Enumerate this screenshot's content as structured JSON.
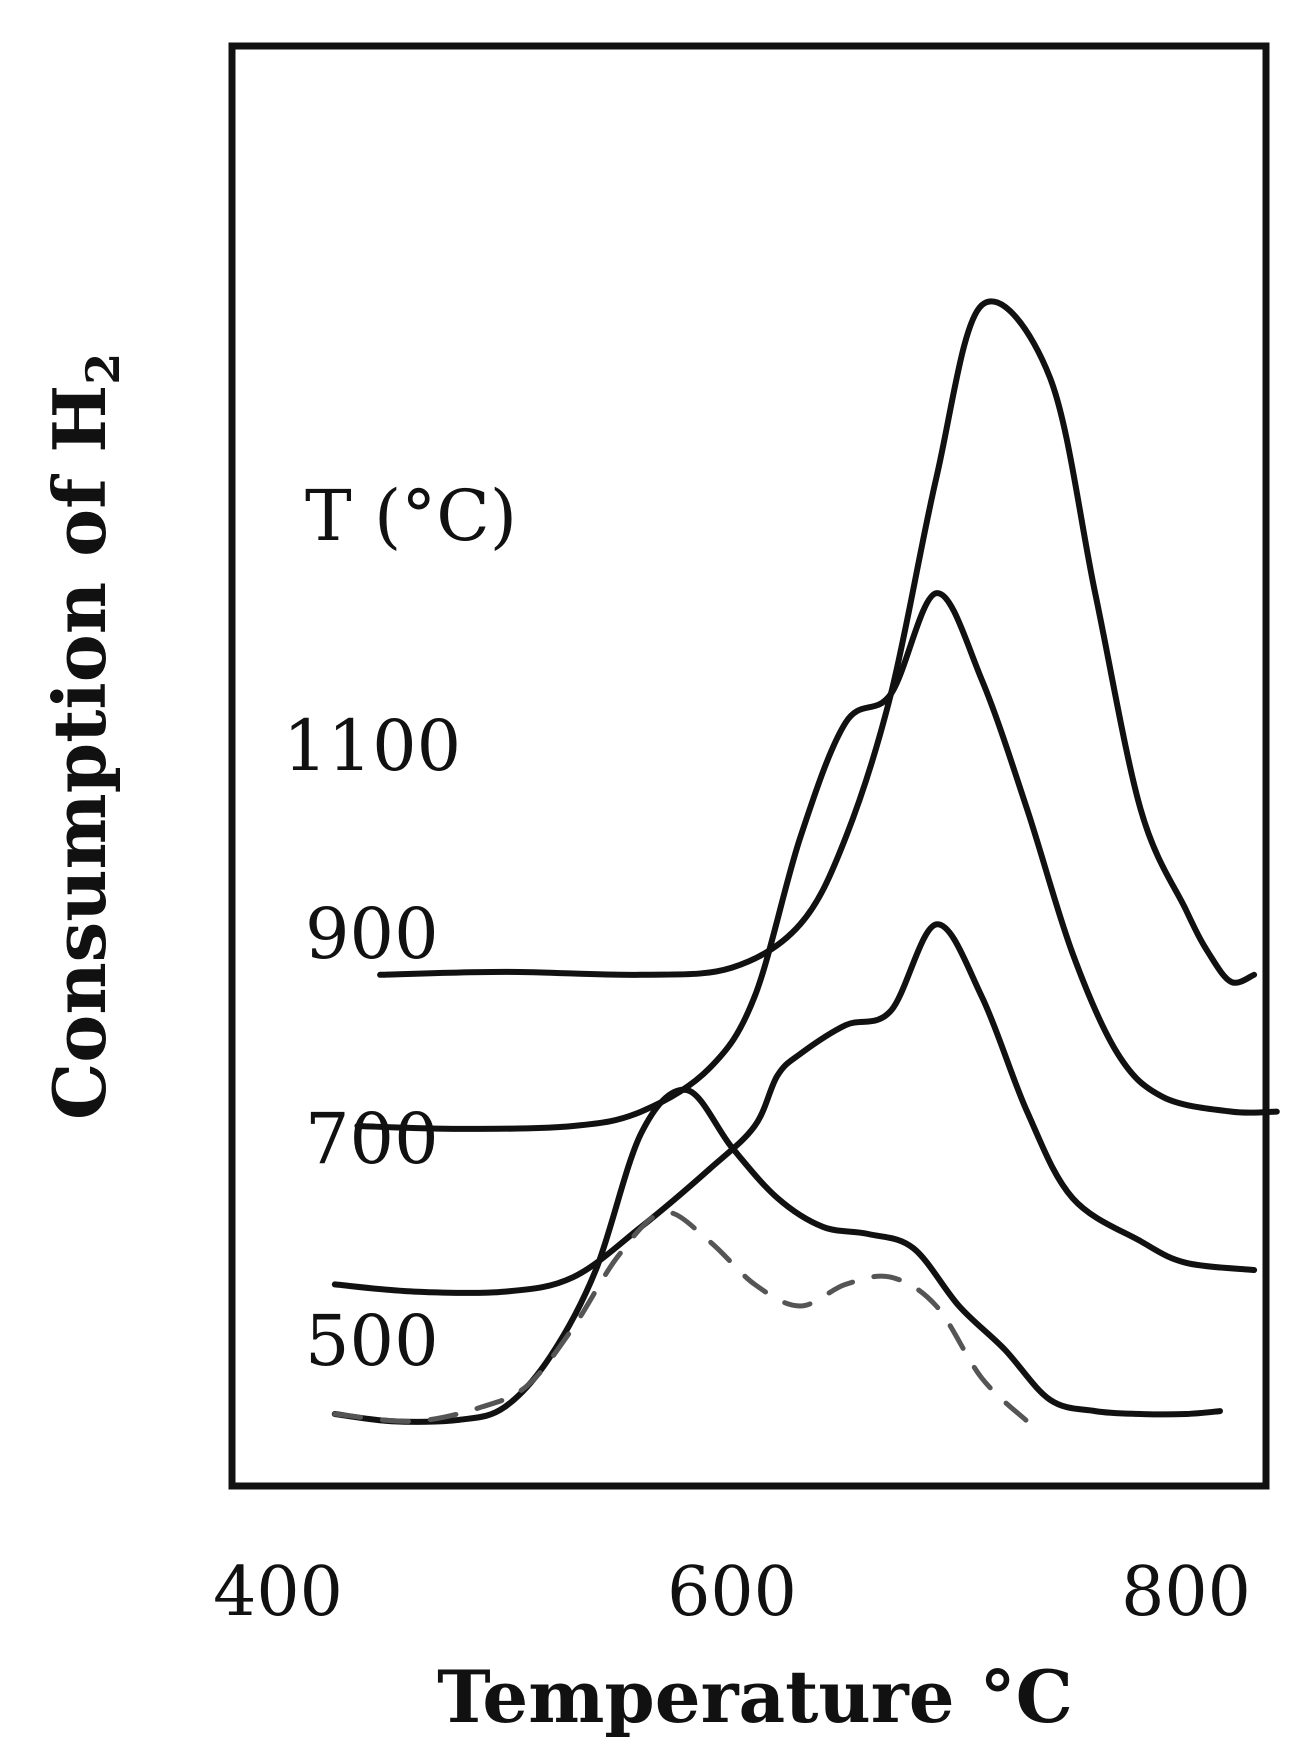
{
  "chart_data": {
    "type": "line",
    "xlabel": "Temperature °C",
    "ylabel": "Consumption of H",
    "ylabel_sub": "2",
    "xlim": [
      385,
      840
    ],
    "x_ticks": [
      "400",
      "600",
      "800"
    ],
    "legend_title": "T (°C)",
    "grid": false,
    "series": [
      {
        "name": "1100",
        "x": [
          445,
          500,
          560,
          600,
          630,
          650,
          670,
          690,
          710,
          740,
          760,
          780,
          800,
          810,
          820,
          830
        ],
        "y": [
          0.355,
          0.357,
          0.355,
          0.36,
          0.39,
          0.45,
          0.55,
          0.7,
          0.82,
          0.77,
          0.62,
          0.47,
          0.4,
          0.37,
          0.35,
          0.355
        ]
      },
      {
        "name": "900",
        "x": [
          435,
          480,
          530,
          560,
          590,
          610,
          630,
          650,
          670,
          690,
          710,
          730,
          750,
          770,
          790,
          820,
          840
        ],
        "y": [
          0.25,
          0.248,
          0.25,
          0.26,
          0.29,
          0.34,
          0.45,
          0.53,
          0.55,
          0.62,
          0.56,
          0.47,
          0.37,
          0.3,
          0.27,
          0.26,
          0.26
        ]
      },
      {
        "name": "700",
        "x": [
          425,
          460,
          500,
          530,
          560,
          590,
          610,
          620,
          630,
          650,
          670,
          690,
          710,
          730,
          750,
          780,
          800,
          830
        ],
        "y": [
          0.14,
          0.135,
          0.135,
          0.145,
          0.18,
          0.22,
          0.25,
          0.285,
          0.3,
          0.32,
          0.33,
          0.39,
          0.34,
          0.26,
          0.2,
          0.17,
          0.155,
          0.15
        ]
      },
      {
        "name": "500",
        "x": [
          425,
          450,
          480,
          500,
          520,
          540,
          560,
          580,
          600,
          620,
          640,
          660,
          680,
          700,
          720,
          740,
          760,
          780,
          800,
          815
        ],
        "y": [
          0.05,
          0.045,
          0.046,
          0.055,
          0.09,
          0.15,
          0.245,
          0.275,
          0.235,
          0.2,
          0.18,
          0.175,
          0.165,
          0.125,
          0.095,
          0.06,
          0.052,
          0.05,
          0.05,
          0.052
        ]
      },
      {
        "name": "",
        "style": "dashed",
        "x": [
          425,
          460,
          490,
          510,
          530,
          550,
          570,
          590,
          610,
          630,
          650,
          670,
          690,
          710,
          730
        ],
        "y": [
          0.05,
          0.045,
          0.055,
          0.07,
          0.11,
          0.16,
          0.19,
          0.17,
          0.14,
          0.125,
          0.14,
          0.145,
          0.125,
          0.075,
          0.045
        ]
      }
    ]
  }
}
